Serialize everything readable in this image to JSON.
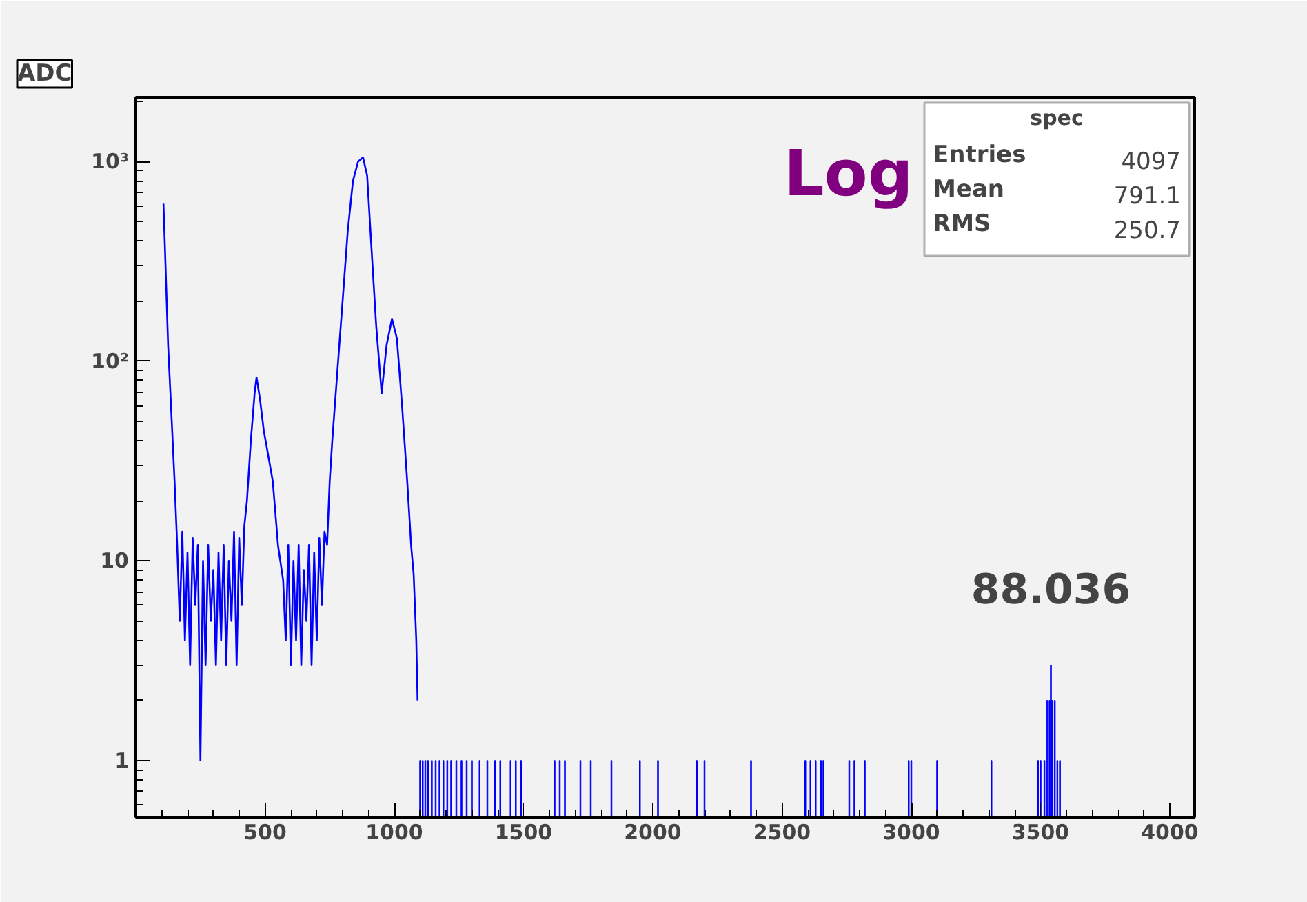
{
  "chart_data": {
    "type": "line",
    "title": "ADC",
    "annotations": [
      "Log",
      "spec",
      "Entries 4097",
      "Mean 791.1",
      "RMS 250.7",
      {
        "text": "88.036",
        "x": 3540,
        "y": 3
      }
    ],
    "log": "y",
    "grid": false,
    "marker": "none",
    "line_style": "solid",
    "xlim": [
      0,
      4096
    ],
    "ylim": [
      0.52,
      2100
    ],
    "xticks": [
      500,
      1000,
      1500,
      2000,
      2500,
      3000,
      3500,
      4000
    ],
    "yticks": [
      1,
      10,
      {
        "value": 100,
        "label": "10²"
      },
      {
        "value": 1000,
        "label": "10³"
      }
    ],
    "series": [
      {
        "color": "#0000ff",
        "x": [
          107,
          115,
          125,
          140,
          150,
          160,
          170,
          180,
          190,
          200,
          210,
          220,
          230,
          240,
          250,
          260,
          270,
          280,
          290,
          300,
          310,
          320,
          330,
          340,
          350,
          360,
          370,
          380,
          390,
          400,
          410,
          420,
          430,
          445,
          460,
          467,
          480,
          495,
          510,
          530,
          550,
          570,
          580,
          590,
          600,
          610,
          620,
          630,
          640,
          650,
          660,
          670,
          680,
          690,
          700,
          710,
          720,
          730,
          740,
          750,
          760,
          780,
          800,
          820,
          840,
          860,
          879,
          895,
          910,
          930,
          951,
          970,
          991,
          1010,
          1030,
          1050,
          1065,
          1075,
          1085,
          1090
        ],
        "values": [
          615,
          300,
          120,
          47,
          25,
          12,
          5,
          14,
          4,
          11,
          3,
          13,
          6,
          12,
          1,
          10,
          3,
          12,
          5,
          9,
          3,
          11,
          4,
          12,
          3,
          10,
          5,
          14,
          3,
          13,
          6,
          15,
          20,
          40,
          70,
          83,
          65,
          45,
          35,
          25,
          12,
          8,
          4,
          12,
          3,
          10,
          4,
          12,
          3,
          9,
          5,
          12,
          3,
          11,
          4,
          13,
          6,
          14,
          12,
          25,
          40,
          90,
          200,
          450,
          800,
          1000,
          1050,
          850,
          400,
          150,
          69,
          120,
          163,
          130,
          60,
          25,
          12,
          8.5,
          4,
          2
        ]
      },
      {
        "type": "bar",
        "color": "#0000ff",
        "x": [
          1100,
          1110,
          1120,
          1130,
          1145,
          1160,
          1175,
          1190,
          1205,
          1220,
          1240,
          1260,
          1280,
          1300,
          1330,
          1360,
          1390,
          1410,
          1450,
          1470,
          1490,
          1620,
          1640,
          1660,
          1720,
          1760,
          1840,
          1950,
          2020,
          2170,
          2200,
          2380,
          2590,
          2610,
          2630,
          2650,
          2660,
          2760,
          2780,
          2820,
          2990,
          3000,
          3100,
          3310,
          3490,
          3500,
          3515,
          3525,
          3535,
          3540,
          3545,
          3555,
          3565,
          3575
        ],
        "values": [
          1,
          1,
          1,
          1,
          1,
          1,
          1,
          1,
          1,
          1,
          1,
          1,
          1,
          1,
          1,
          1,
          1,
          1,
          1,
          1,
          1,
          1,
          1,
          1,
          1,
          1,
          1,
          1,
          1,
          1,
          1,
          1,
          1,
          1,
          1,
          1,
          1,
          1,
          1,
          1,
          1,
          1,
          1,
          1,
          1,
          1,
          1,
          2,
          2,
          3,
          2,
          2,
          1,
          1
        ]
      }
    ]
  }
}
